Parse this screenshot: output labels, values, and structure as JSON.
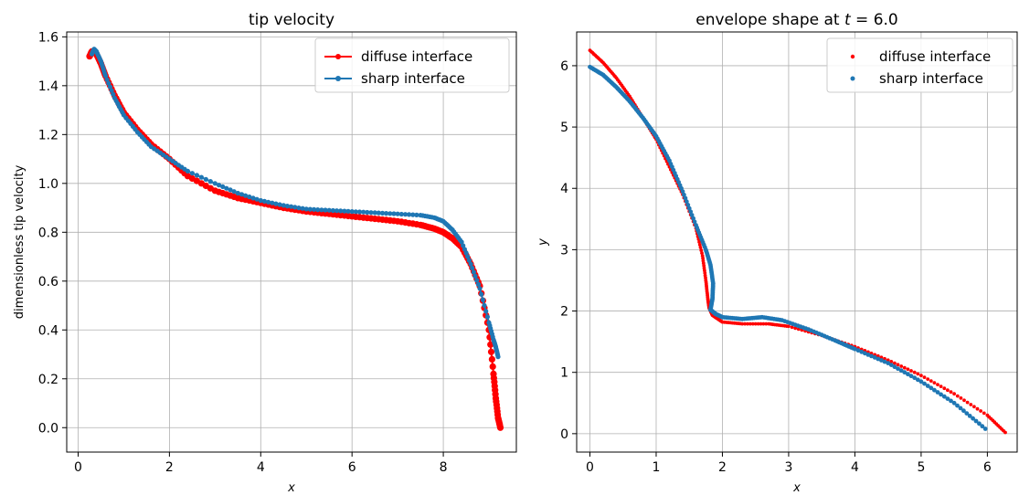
{
  "chart_data": [
    {
      "type": "line",
      "title": "tip velocity",
      "xlabel": "x",
      "ylabel": "dimensionless tip velocity",
      "xlim": [
        -0.25,
        9.6
      ],
      "ylim": [
        -0.1,
        1.62
      ],
      "xticks": [
        0,
        2,
        4,
        6,
        8
      ],
      "yticks": [
        0.0,
        0.2,
        0.4,
        0.6,
        0.8,
        1.0,
        1.2,
        1.4,
        1.6
      ],
      "xtick_labels": [
        "0",
        "2",
        "4",
        "6",
        "8"
      ],
      "ytick_labels": [
        "0.0",
        "0.2",
        "0.4",
        "0.6",
        "0.8",
        "1.0",
        "1.2",
        "1.4",
        "1.6"
      ],
      "grid": true,
      "legend": "top-right",
      "series": [
        {
          "name": "diffuse interface",
          "color": "#ff0000",
          "x": [
            0.25,
            0.3,
            0.4,
            0.5,
            0.6,
            0.8,
            1.0,
            1.3,
            1.6,
            2.0,
            2.4,
            3.0,
            3.5,
            4.0,
            4.5,
            5.0,
            5.5,
            6.0,
            6.5,
            7.0,
            7.5,
            7.8,
            8.0,
            8.2,
            8.4,
            8.6,
            8.8,
            9.0,
            9.1,
            9.15,
            9.2,
            9.25
          ],
          "y": [
            1.52,
            1.54,
            1.53,
            1.49,
            1.44,
            1.36,
            1.29,
            1.22,
            1.16,
            1.1,
            1.03,
            0.97,
            0.94,
            0.92,
            0.9,
            0.885,
            0.875,
            0.865,
            0.855,
            0.845,
            0.83,
            0.815,
            0.8,
            0.775,
            0.74,
            0.67,
            0.58,
            0.4,
            0.22,
            0.12,
            0.04,
            0.0
          ]
        },
        {
          "name": "sharp interface",
          "color": "#1f77b4",
          "x": [
            0.3,
            0.35,
            0.4,
            0.5,
            0.6,
            0.8,
            1.0,
            1.3,
            1.6,
            2.0,
            2.4,
            3.0,
            3.5,
            4.0,
            4.5,
            5.0,
            5.5,
            6.0,
            6.5,
            7.0,
            7.5,
            7.8,
            8.0,
            8.2,
            8.4,
            8.6,
            8.8,
            9.0,
            9.1,
            9.15,
            9.2
          ],
          "y": [
            1.53,
            1.55,
            1.54,
            1.5,
            1.44,
            1.35,
            1.28,
            1.21,
            1.15,
            1.1,
            1.05,
            1.0,
            0.96,
            0.93,
            0.91,
            0.895,
            0.89,
            0.885,
            0.88,
            0.875,
            0.87,
            0.86,
            0.845,
            0.81,
            0.76,
            0.67,
            0.57,
            0.43,
            0.36,
            0.33,
            0.29
          ]
        }
      ]
    },
    {
      "type": "scatter",
      "title_prefix": "envelope shape at ",
      "title_var": "t",
      "title_suffix": " = 6.0",
      "xlabel": "x",
      "ylabel": "y",
      "xlim": [
        -0.2,
        6.45
      ],
      "ylim": [
        -0.3,
        6.55
      ],
      "xticks": [
        0,
        1,
        2,
        3,
        4,
        5,
        6
      ],
      "yticks": [
        0,
        1,
        2,
        3,
        4,
        5,
        6
      ],
      "xtick_labels": [
        "0",
        "1",
        "2",
        "3",
        "4",
        "5",
        "6"
      ],
      "ytick_labels": [
        "0",
        "1",
        "2",
        "3",
        "4",
        "5",
        "6"
      ],
      "grid": true,
      "legend": "top-right",
      "series": [
        {
          "name": "diffuse interface",
          "color": "#ff0000",
          "x": [
            0.0,
            0.2,
            0.4,
            0.6,
            0.8,
            1.0,
            1.2,
            1.4,
            1.6,
            1.7,
            1.75,
            1.78,
            1.8,
            1.85,
            2.0,
            2.3,
            2.7,
            3.0,
            3.5,
            4.0,
            4.5,
            5.0,
            5.5,
            6.0,
            6.27
          ],
          "y": [
            6.25,
            6.05,
            5.8,
            5.5,
            5.15,
            4.8,
            4.35,
            3.9,
            3.35,
            2.9,
            2.5,
            2.2,
            2.05,
            1.93,
            1.82,
            1.79,
            1.79,
            1.75,
            1.6,
            1.42,
            1.2,
            0.95,
            0.65,
            0.3,
            0.02
          ]
        },
        {
          "name": "sharp interface",
          "color": "#1f77b4",
          "x": [
            0.0,
            0.2,
            0.4,
            0.6,
            0.8,
            1.0,
            1.2,
            1.4,
            1.6,
            1.75,
            1.82,
            1.86,
            1.85,
            1.82,
            1.9,
            2.0,
            2.3,
            2.6,
            2.9,
            3.3,
            3.7,
            4.0,
            4.5,
            5.0,
            5.5,
            5.97
          ],
          "y": [
            5.98,
            5.85,
            5.65,
            5.42,
            5.15,
            4.85,
            4.45,
            3.95,
            3.4,
            3.0,
            2.75,
            2.45,
            2.2,
            2.02,
            1.95,
            1.9,
            1.87,
            1.9,
            1.85,
            1.7,
            1.52,
            1.38,
            1.15,
            0.85,
            0.5,
            0.08
          ]
        }
      ]
    }
  ]
}
